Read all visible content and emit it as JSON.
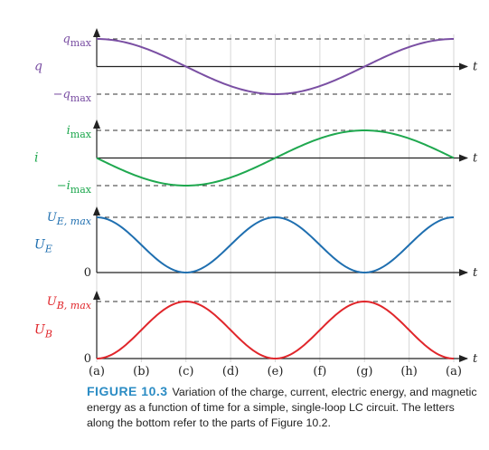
{
  "caption": {
    "label": "FIGURE 10.3",
    "text": "Variation of the charge, current, electric energy, and magnetic energy as a function of time for a simple, single-loop LC circuit. The letters along the bottom refer to the parts of Figure 10.2."
  },
  "time_labels": [
    "(a)",
    "(b)",
    "(c)",
    "(d)",
    "(e)",
    "(f)",
    "(g)",
    "(h)",
    "(a)"
  ],
  "axis_label": "t",
  "chart_data": [
    {
      "type": "line",
      "ylabel": "q",
      "color": "#7a4fa3",
      "ticks": [
        {
          "base": "q",
          "sub": "max",
          "value": 1
        },
        {
          "base": "−q",
          "sub": "max",
          "value": -1
        }
      ],
      "ylim": [
        -1,
        1
      ],
      "x": [
        0,
        1,
        2,
        3,
        4,
        5,
        6,
        7,
        8
      ],
      "values": [
        1,
        0.707,
        0,
        -0.707,
        -1,
        -0.707,
        0,
        0.707,
        1
      ]
    },
    {
      "type": "line",
      "ylabel": "i",
      "color": "#1fa84f",
      "ticks": [
        {
          "base": "i",
          "sub": "max",
          "value": 1
        },
        {
          "base": "−i",
          "sub": "max",
          "value": -1
        }
      ],
      "ylim": [
        -1,
        1
      ],
      "x": [
        0,
        1,
        2,
        3,
        4,
        5,
        6,
        7,
        8
      ],
      "values": [
        0,
        -0.707,
        -1,
        -0.707,
        0,
        0.707,
        1,
        0.707,
        0
      ]
    },
    {
      "type": "line",
      "ylabel": "U",
      "ylabel_sub": "E",
      "color": "#1f6fb0",
      "ticks": [
        {
          "base": "U",
          "sub": "E, max",
          "value": 1
        },
        {
          "base": "0",
          "sub": "",
          "value": 0
        }
      ],
      "ylim": [
        0,
        1
      ],
      "x": [
        0,
        1,
        2,
        3,
        4,
        5,
        6,
        7,
        8
      ],
      "values": [
        1,
        0.5,
        0,
        0.5,
        1,
        0.5,
        0,
        0.5,
        1
      ]
    },
    {
      "type": "line",
      "ylabel": "U",
      "ylabel_sub": "B",
      "color": "#e0262b",
      "ticks": [
        {
          "base": "U",
          "sub": "B, max",
          "value": 1
        },
        {
          "base": "0",
          "sub": "",
          "value": 0
        }
      ],
      "ylim": [
        0,
        1
      ],
      "x": [
        0,
        1,
        2,
        3,
        4,
        5,
        6,
        7,
        8
      ],
      "values": [
        0,
        0.5,
        1,
        0.5,
        0,
        0.5,
        1,
        0.5,
        0
      ]
    }
  ]
}
